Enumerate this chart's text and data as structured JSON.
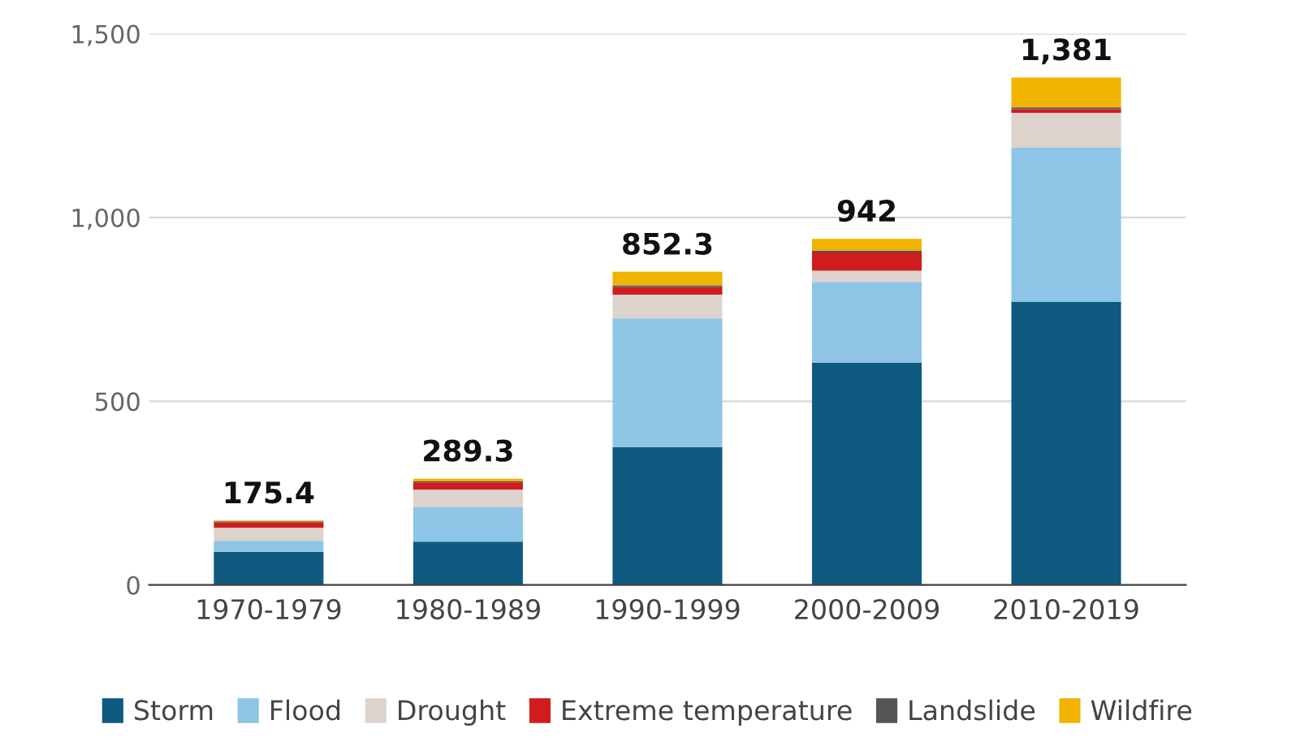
{
  "chart_data": {
    "type": "bar",
    "stacked": true,
    "categories": [
      "1970-1979",
      "1980-1989",
      "1990-1999",
      "2000-2009",
      "2010-2019"
    ],
    "series": [
      {
        "name": "Storm",
        "color": "#0f5a80",
        "values": [
          90.4,
          118.3,
          375.3,
          605,
          770
        ]
      },
      {
        "name": "Flood",
        "color": "#8ec5e6",
        "values": [
          30,
          93,
          350,
          220,
          420
        ]
      },
      {
        "name": "Drought",
        "color": "#dcd3cc",
        "values": [
          35,
          48,
          65,
          30,
          95
        ]
      },
      {
        "name": "Extreme temperature",
        "color": "#d01c1f",
        "values": [
          15,
          20,
          20,
          50,
          10
        ]
      },
      {
        "name": "Landslide",
        "color": "#555555",
        "values": [
          3,
          3,
          5,
          5,
          5
        ]
      },
      {
        "name": "Wildfire",
        "color": "#f0b400",
        "values": [
          2,
          7,
          37,
          32,
          81
        ]
      }
    ],
    "totals": [
      "175.4",
      "289.3",
      "852.3",
      "942",
      "1,381"
    ],
    "ylim": [
      0,
      1500
    ],
    "yticks": [
      0,
      500,
      {
        "value": 1000,
        "label": "1,000"
      },
      {
        "value": 1500,
        "label": "1,500"
      }
    ],
    "grid": "y",
    "legend": "bottom"
  }
}
